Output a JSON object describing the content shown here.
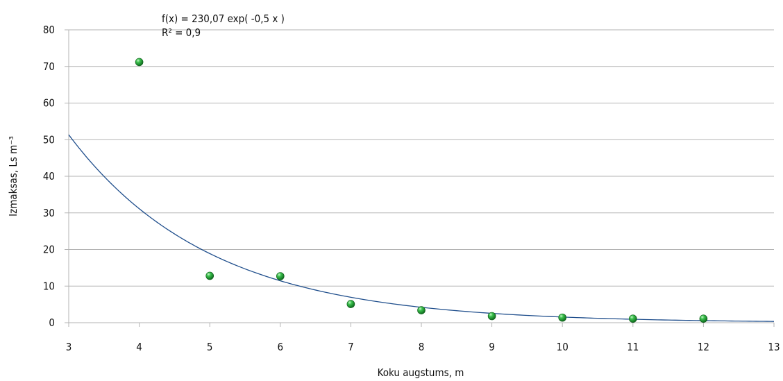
{
  "chart_data": {
    "type": "scatter",
    "xlabel": "Koku augstums, m",
    "ylabel": "Izmaksas, Ls m⁻³",
    "xlim": [
      3,
      13
    ],
    "ylim": [
      0,
      80
    ],
    "x_ticks": [
      "3",
      "4",
      "5",
      "6",
      "7",
      "8",
      "9",
      "10",
      "11",
      "12",
      "13"
    ],
    "y_ticks": [
      "0",
      "10",
      "20",
      "30",
      "40",
      "50",
      "60",
      "70",
      "80"
    ],
    "grid": "horizontal",
    "point_color": "#22a83a",
    "trend_color": "#1f4e8c",
    "points": [
      {
        "x": 4,
        "y": 71.2
      },
      {
        "x": 5,
        "y": 12.8
      },
      {
        "x": 6,
        "y": 12.7
      },
      {
        "x": 7,
        "y": 5.1
      },
      {
        "x": 8,
        "y": 3.4
      },
      {
        "x": 9,
        "y": 1.8
      },
      {
        "x": 10,
        "y": 1.4
      },
      {
        "x": 11,
        "y": 1.1
      },
      {
        "x": 12,
        "y": 1.1
      }
    ],
    "trendline": {
      "type": "exponential",
      "a": 230.07,
      "b": -0.5
    },
    "annotations": {
      "equation": "f(x) = 230,07 exp( -0,5 x )",
      "r_squared": "R² = 0,9"
    }
  }
}
